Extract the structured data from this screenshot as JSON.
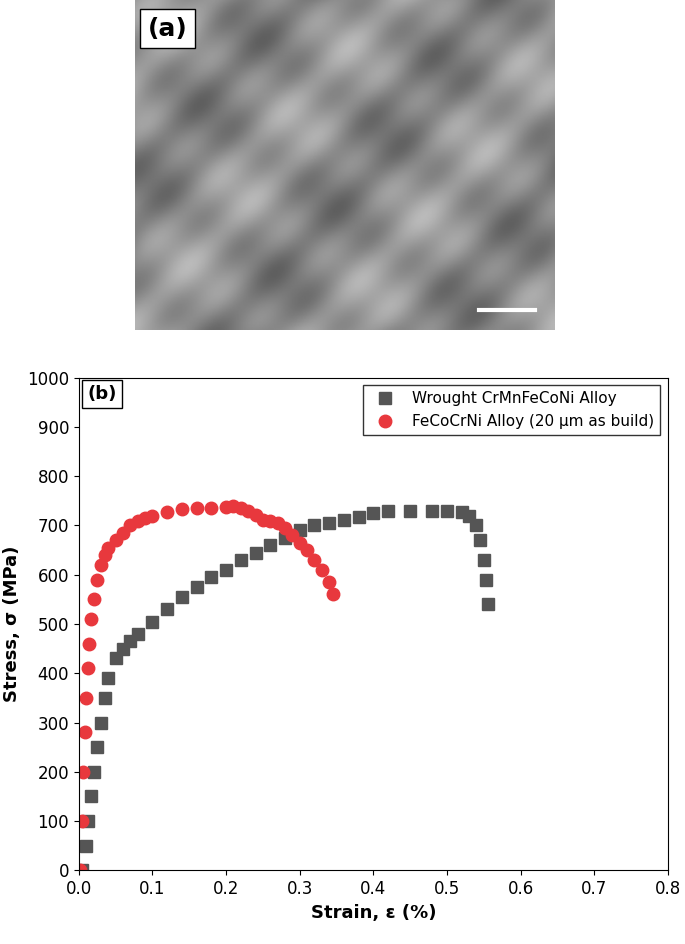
{
  "panel_a": {
    "label": "(a)"
  },
  "chart_data": {
    "type": "scatter",
    "annotations": [
      "(b)"
    ],
    "x_label": "Strain, ε (%)",
    "y_label": "Stress, σ (MPa)",
    "xlim": [
      0.0,
      0.8
    ],
    "xticks": [
      0.0,
      0.1,
      0.2,
      0.3,
      0.4,
      0.5,
      0.6,
      0.7,
      0.8
    ],
    "ylim": [
      0,
      1000
    ],
    "yticks": [
      0,
      100,
      200,
      300,
      400,
      500,
      600,
      700,
      800,
      900,
      1000
    ],
    "legend": "upper right",
    "grid": false,
    "series": [
      {
        "name": "Wrought CrMnFeCoNi Alloy",
        "color": "#555555",
        "marker": "square",
        "x": [
          0.005,
          0.01,
          0.013,
          0.016,
          0.02,
          0.025,
          0.03,
          0.035,
          0.04,
          0.05,
          0.06,
          0.07,
          0.08,
          0.1,
          0.12,
          0.14,
          0.16,
          0.18,
          0.2,
          0.22,
          0.24,
          0.26,
          0.28,
          0.3,
          0.32,
          0.34,
          0.36,
          0.38,
          0.4,
          0.42,
          0.45,
          0.48,
          0.5,
          0.52,
          0.53,
          0.54,
          0.545,
          0.55,
          0.553,
          0.556
        ],
        "values": [
          0,
          50,
          100,
          150,
          200,
          250,
          300,
          350,
          390,
          430,
          450,
          465,
          480,
          505,
          530,
          555,
          575,
          595,
          610,
          630,
          645,
          660,
          675,
          690,
          700,
          705,
          712,
          718,
          725,
          730,
          730,
          730,
          730,
          728,
          720,
          700,
          670,
          630,
          590,
          540
        ]
      },
      {
        "name": "FeCoCrNi Alloy (20 μm as build)",
        "color": "#e8383d",
        "marker": "circle",
        "x": [
          0.002,
          0.004,
          0.006,
          0.008,
          0.01,
          0.012,
          0.014,
          0.017,
          0.02,
          0.025,
          0.03,
          0.035,
          0.04,
          0.05,
          0.06,
          0.07,
          0.08,
          0.09,
          0.1,
          0.12,
          0.14,
          0.16,
          0.18,
          0.2,
          0.21,
          0.22,
          0.23,
          0.24,
          0.25,
          0.26,
          0.27,
          0.28,
          0.29,
          0.3,
          0.31,
          0.32,
          0.33,
          0.34,
          0.345
        ],
        "values": [
          0,
          100,
          200,
          280,
          350,
          410,
          460,
          510,
          550,
          590,
          620,
          640,
          655,
          670,
          685,
          700,
          710,
          715,
          720,
          728,
          733,
          735,
          736,
          738,
          740,
          736,
          730,
          722,
          712,
          710,
          705,
          695,
          680,
          665,
          650,
          630,
          610,
          585,
          560
        ]
      }
    ]
  }
}
